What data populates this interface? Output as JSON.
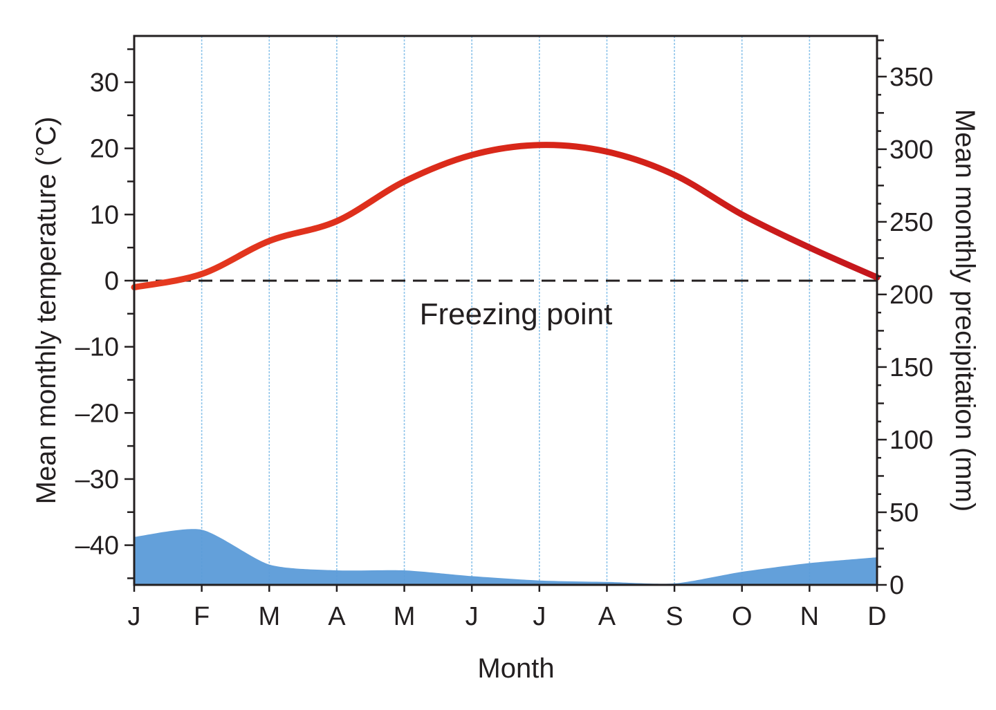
{
  "chart_data": {
    "type": "climate_graph",
    "title": "",
    "xlabel": "Month",
    "categories": [
      "J",
      "F",
      "M",
      "A",
      "M",
      "J",
      "J",
      "A",
      "S",
      "O",
      "N",
      "D"
    ],
    "series": [
      {
        "name": "",
        "kind": "line",
        "axis": "left",
        "color": "#d62418",
        "values": [
          -1,
          1,
          6,
          9,
          15,
          19,
          20.5,
          19.5,
          16,
          10,
          5,
          0.5
        ]
      },
      {
        "name": "",
        "kind": "area",
        "axis": "right",
        "color": "#5b9bd8",
        "values": [
          33,
          38,
          14,
          10,
          10,
          6,
          3,
          2,
          1,
          9,
          15,
          19
        ]
      }
    ],
    "y_left": {
      "label": "Mean monthly temperature (°C)",
      "ylim": [
        -46,
        37
      ],
      "ticks": [
        -40,
        -30,
        -20,
        -10,
        0,
        10,
        20,
        30
      ],
      "tick_labels": [
        "–40",
        "–30",
        "–20",
        "–10",
        "0",
        "10",
        "20",
        "30"
      ]
    },
    "y_right": {
      "label": "Mean monthly precipitation (mm)",
      "ylim": [
        0,
        378
      ],
      "ticks": [
        0,
        50,
        100,
        150,
        200,
        250,
        300,
        350
      ],
      "tick_labels": [
        "0",
        "50",
        "100",
        "150",
        "200",
        "250",
        "300",
        "350"
      ]
    },
    "reference_line": {
      "axis": "left",
      "value": 0,
      "label": "Freezing point",
      "style": "dashed"
    },
    "grid": {
      "vertical": true,
      "horizontal": false,
      "color": "#8ec4ea"
    },
    "legend": "none"
  }
}
